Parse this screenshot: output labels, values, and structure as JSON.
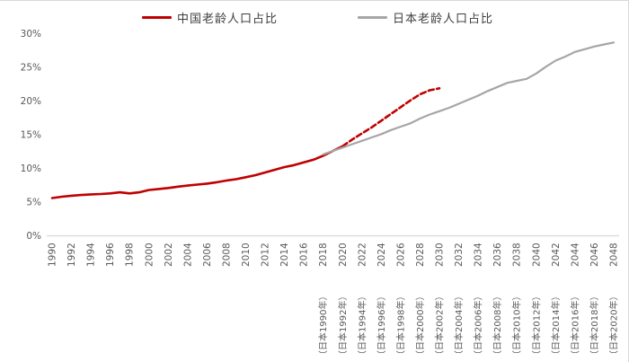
{
  "colors": {
    "china_red": "#c00000",
    "japan_gray": "#a6a6a6",
    "axis_line": "#d9d9d9",
    "tick_text": "#595959",
    "legend_text": "#3f3f3f"
  },
  "legend": {
    "china": {
      "label": "中国老龄人口占比"
    },
    "japan": {
      "label": "日本老龄人口占比"
    }
  },
  "chart_data": {
    "type": "line",
    "title": "",
    "grid": "off",
    "legend_position": "top",
    "y_axis": {
      "min": 0,
      "max": 30,
      "step": 5,
      "unit": "%",
      "tick_labels": [
        "0%",
        "5%",
        "10%",
        "15%",
        "20%",
        "25%",
        "30%"
      ]
    },
    "x_axis": {
      "tick_years": [
        1990,
        1992,
        1994,
        1996,
        1998,
        2000,
        2002,
        2004,
        2006,
        2008,
        2010,
        2012,
        2014,
        2016,
        2018,
        2020,
        2022,
        2024,
        2026,
        2028,
        2030,
        2032,
        2034,
        2036,
        2038,
        2040,
        2042,
        2044,
        2046,
        2048
      ],
      "sub_label_start_year": 2018,
      "japan_sub_labels": [
        "（日本1990年）",
        "（日本1992年）",
        "（日本1994年）",
        "（日本1996年）",
        "（日本1998年）",
        "（日本2000年）",
        "（日本2002年）",
        "（日本2004年）",
        "（日本2006年）",
        "（日本2008年）",
        "（日本2010年）",
        "（日本2012年）",
        "（日本2014年）",
        "（日本2016年）",
        "（日本2018年）",
        "（日本2020年）"
      ]
    },
    "series": [
      {
        "id": "china-historical",
        "name": "中国老龄人口占比",
        "color": "#c00000",
        "line_style": "solid",
        "start_year": 1990,
        "year_step": 1,
        "values": [
          5.6,
          5.8,
          5.95,
          6.05,
          6.15,
          6.2,
          6.3,
          6.45,
          6.3,
          6.45,
          6.8,
          6.95,
          7.1,
          7.3,
          7.45,
          7.6,
          7.75,
          7.95,
          8.2,
          8.4,
          8.7,
          9.0,
          9.4,
          9.8,
          10.2,
          10.5,
          10.9,
          11.3,
          11.9,
          12.6,
          13.3
        ]
      },
      {
        "id": "china-forecast",
        "name": "中国老龄人口占比",
        "color": "#c00000",
        "line_style": "dashed",
        "start_year": 2020,
        "year_step": 1,
        "values": [
          13.3,
          14.3,
          15.2,
          16.1,
          17.1,
          18.1,
          19.1,
          20.1,
          21.0,
          21.6,
          21.9
        ]
      },
      {
        "id": "japan-historical",
        "name": "日本老龄人口占比",
        "color": "#a6a6a6",
        "line_style": "solid",
        "start_year": 2018,
        "year_step": 1,
        "values": [
          12.1,
          12.6,
          13.1,
          13.6,
          14.1,
          14.6,
          15.1,
          15.7,
          16.2,
          16.7,
          17.4,
          18.0,
          18.5,
          19.0,
          19.6,
          20.2,
          20.8,
          21.5,
          22.1,
          22.7,
          23.0,
          23.3,
          24.1,
          25.1,
          26.0,
          26.6,
          27.3,
          27.7,
          28.1,
          28.4,
          28.7
        ]
      }
    ]
  }
}
